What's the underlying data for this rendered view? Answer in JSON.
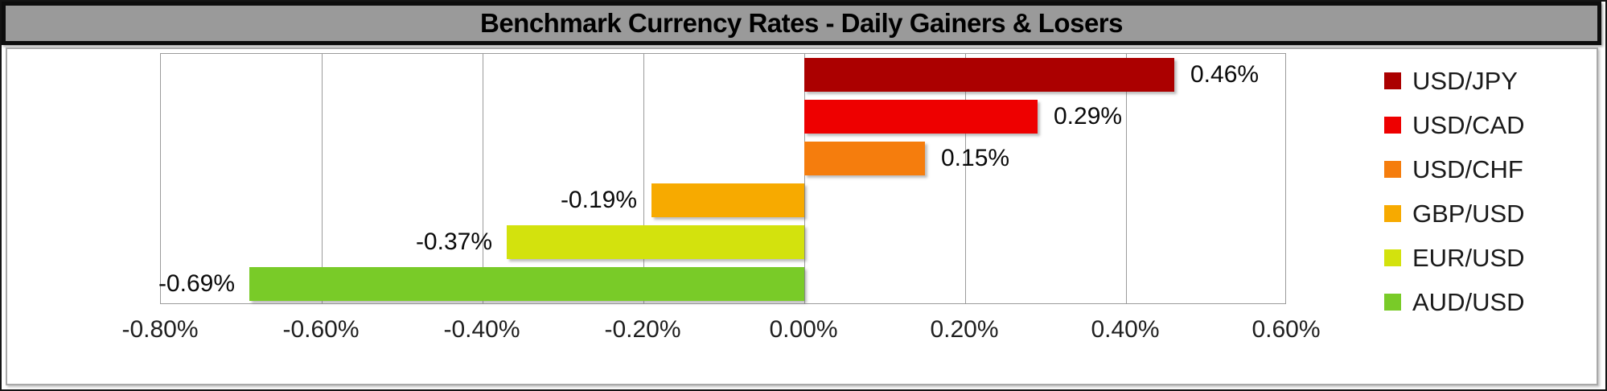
{
  "title": "Benchmark Currency Rates - Daily Gainers & Losers",
  "chart_data": {
    "type": "bar",
    "orientation": "horizontal",
    "title": "Benchmark Currency Rates - Daily Gainers & Losers",
    "series": [
      {
        "name": "USD/JPY",
        "value": 0.46,
        "label": "0.46%",
        "color": "#AB0000"
      },
      {
        "name": "USD/CAD",
        "value": 0.29,
        "label": "0.29%",
        "color": "#EE0000"
      },
      {
        "name": "USD/CHF",
        "value": 0.15,
        "label": "0.15%",
        "color": "#F57D0D"
      },
      {
        "name": "GBP/USD",
        "value": -0.19,
        "label": "-0.19%",
        "color": "#F7AA00"
      },
      {
        "name": "EUR/USD",
        "value": -0.37,
        "label": "-0.37%",
        "color": "#D3E20D"
      },
      {
        "name": "AUD/USD",
        "value": -0.69,
        "label": "-0.69%",
        "color": "#79CB28"
      }
    ],
    "x_axis": {
      "min": -0.8,
      "max": 0.6,
      "step": 0.2,
      "tick_labels": [
        "-0.80%",
        "-0.60%",
        "-0.40%",
        "-0.20%",
        "0.00%",
        "0.20%",
        "0.40%",
        "0.60%"
      ]
    },
    "legend_position": "right",
    "grid": "vertical",
    "data_labels": "outside-end"
  },
  "colors": {
    "title_bar_bg": "#9a9a9a",
    "title_text": "#000000",
    "gridline": "#9b9b9b",
    "axis_text": "#1f1f1f",
    "label_text": "#0a0a0a"
  }
}
